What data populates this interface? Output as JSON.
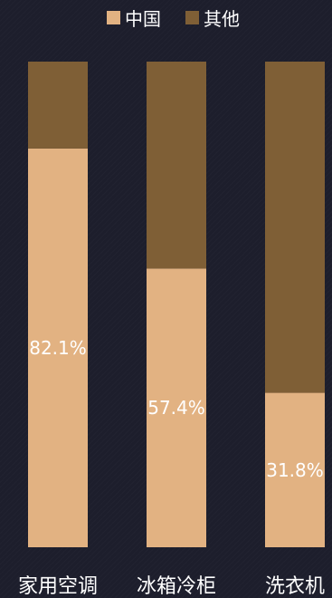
{
  "chart_data": {
    "type": "bar",
    "stacked": true,
    "percent": true,
    "categories": [
      "家用空调",
      "冰箱冷柜",
      "洗衣机"
    ],
    "series": [
      {
        "name": "中国",
        "values": [
          82.1,
          57.4,
          31.8
        ],
        "labels": [
          "82.1%",
          "57.4%",
          "31.8%"
        ],
        "color": "#e2b282"
      },
      {
        "name": "其他",
        "values": [
          17.9,
          42.6,
          68.2
        ],
        "color": "#7f5f36"
      }
    ],
    "ylim": [
      0,
      100
    ],
    "grid": false,
    "legend": "top-center"
  },
  "colors": {
    "background": "#1d1e2c",
    "text": "#ffffff"
  }
}
